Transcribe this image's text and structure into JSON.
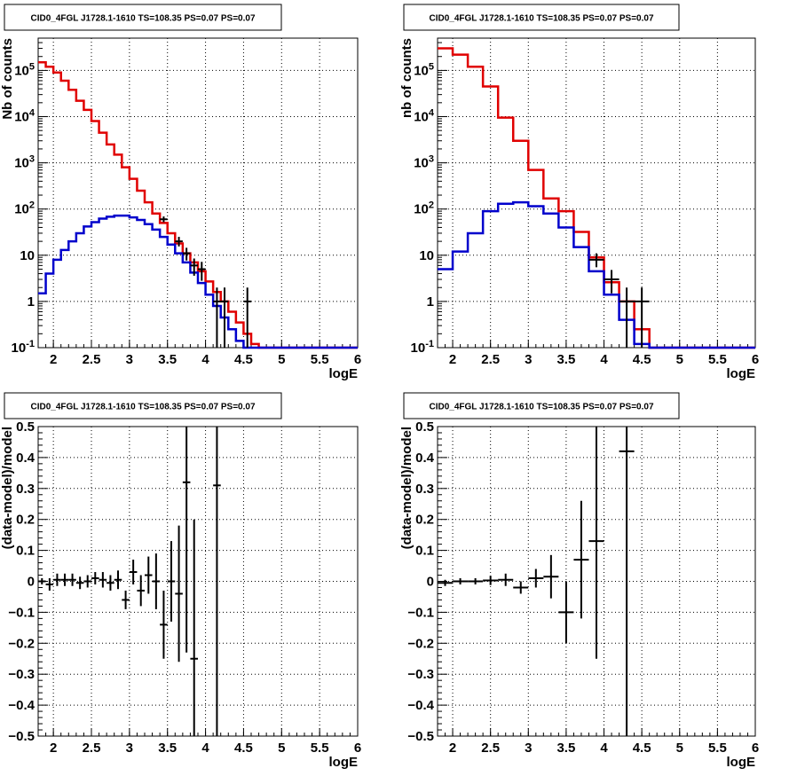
{
  "chart_data": [
    {
      "type": "histogram",
      "title": "CID0_4FGL J1728.1-1610 TS=108.35 PS=0.07 PS=0.07",
      "xlabel": "logE",
      "ylabel": "Nb of counts",
      "xlim": [
        1.8,
        6.0
      ],
      "ylim": [
        0.1,
        500000
      ],
      "yscale": "log",
      "grid": true,
      "x_ticks": [
        "2",
        "2.5",
        "3",
        "3.5",
        "4",
        "4.5",
        "5",
        "5.5",
        "6"
      ],
      "y_ticks": [
        "10^{-1}",
        "1",
        "10",
        "10^{2}",
        "10^{3}",
        "10^{4}",
        "10^{5}"
      ],
      "bin_width": 0.1,
      "series": [
        {
          "color": "#e00000",
          "bins_x": [
            1.8,
            1.9,
            2.0,
            2.1,
            2.2,
            2.3,
            2.4,
            2.5,
            2.6,
            2.7,
            2.8,
            2.9,
            3.0,
            3.1,
            3.2,
            3.3,
            3.4,
            3.5,
            3.6,
            3.7,
            3.8,
            3.9,
            4.0,
            4.1,
            4.2,
            4.3,
            4.4,
            4.5,
            4.6,
            4.7,
            4.8,
            4.9,
            5.0,
            5.1,
            5.2,
            5.3,
            5.4,
            5.5,
            5.6,
            5.7,
            5.8,
            5.9
          ],
          "values": [
            150000,
            120000,
            90000,
            60000,
            38000,
            22000,
            14000,
            8000,
            4500,
            2500,
            1500,
            800,
            450,
            250,
            140,
            80,
            50,
            30,
            18,
            11,
            7,
            4.5,
            2.7,
            1.6,
            1,
            0.6,
            0.35,
            0.2,
            0.12,
            0.1,
            0.1,
            0.1,
            0.1,
            0.1,
            0.1,
            0.1,
            0.1,
            0.1,
            0.1,
            0.1,
            0.1,
            0.1
          ]
        },
        {
          "color": "#0000cc",
          "bins_x": [
            1.8,
            1.9,
            2.0,
            2.1,
            2.2,
            2.3,
            2.4,
            2.5,
            2.6,
            2.7,
            2.8,
            2.9,
            3.0,
            3.1,
            3.2,
            3.3,
            3.4,
            3.5,
            3.6,
            3.7,
            3.8,
            3.9,
            4.0,
            4.1,
            4.2,
            4.3,
            4.4,
            4.5,
            4.6,
            4.7,
            4.8,
            4.9,
            5.0,
            5.1,
            5.2,
            5.3,
            5.4,
            5.5,
            5.6,
            5.7,
            5.8,
            5.9
          ],
          "values": [
            1.5,
            4,
            8,
            13,
            20,
            30,
            42,
            52,
            62,
            68,
            72,
            72,
            66,
            58,
            47,
            36,
            25,
            17,
            11,
            7,
            4.2,
            2.5,
            1.4,
            0.8,
            0.45,
            0.25,
            0.14,
            0.1,
            0.1,
            0.1,
            0.1,
            0.1,
            0.1,
            0.1,
            0.1,
            0.1,
            0.1,
            0.1,
            0.1,
            0.1,
            0.1,
            0.1
          ]
        }
      ],
      "data_points": [
        {
          "x": 3.45,
          "y": 60,
          "ylo": 52,
          "yhi": 69
        },
        {
          "x": 3.65,
          "y": 20,
          "ylo": 15.5,
          "yhi": 25
        },
        {
          "x": 3.75,
          "y": 11,
          "ylo": 7.7,
          "yhi": 14.5
        },
        {
          "x": 3.85,
          "y": 6,
          "ylo": 3.6,
          "yhi": 8.5
        },
        {
          "x": 3.95,
          "y": 5,
          "ylo": 2.8,
          "yhi": 7.2
        },
        {
          "x": 4.15,
          "y": 1,
          "ylo": 0.1,
          "yhi": 2
        },
        {
          "x": 4.25,
          "y": 1,
          "ylo": 0.1,
          "yhi": 2
        },
        {
          "x": 4.55,
          "y": 1,
          "ylo": 0.1,
          "yhi": 2
        }
      ]
    },
    {
      "type": "histogram",
      "title": "CID0_4FGL J1728.1-1610 TS=108.35 PS=0.07 PS=0.07",
      "xlabel": "logE",
      "ylabel": "nb of counts",
      "xlim": [
        1.8,
        6.0
      ],
      "ylim": [
        0.1,
        500000
      ],
      "yscale": "log",
      "grid": true,
      "x_ticks": [
        "2",
        "2.5",
        "3",
        "3.5",
        "4",
        "4.5",
        "5",
        "5.5",
        "6"
      ],
      "y_ticks": [
        "10^{-1}",
        "1",
        "10",
        "10^{2}",
        "10^{3}",
        "10^{4}",
        "10^{5}"
      ],
      "bin_width": 0.2,
      "series": [
        {
          "color": "#e00000",
          "bins_x": [
            1.8,
            2.0,
            2.2,
            2.4,
            2.6,
            2.8,
            3.0,
            3.2,
            3.4,
            3.6,
            3.8,
            4.0,
            4.2,
            4.4,
            4.6,
            4.8,
            5.0,
            5.2,
            5.4,
            5.6,
            5.8
          ],
          "values": [
            300000,
            220000,
            120000,
            45000,
            9500,
            3000,
            700,
            170,
            90,
            32,
            9,
            2.6,
            1,
            0.25,
            0.1,
            0.1,
            0.1,
            0.1,
            0.1,
            0.1,
            0.1
          ]
        },
        {
          "color": "#0000cc",
          "bins_x": [
            1.8,
            2.0,
            2.2,
            2.4,
            2.6,
            2.8,
            3.0,
            3.2,
            3.4,
            3.6,
            3.8,
            4.0,
            4.2,
            4.4,
            4.6,
            4.8,
            5.0,
            5.2,
            5.4,
            5.6,
            5.8
          ],
          "values": [
            5,
            12,
            30,
            90,
            130,
            140,
            115,
            80,
            40,
            15,
            4.5,
            1.4,
            0.4,
            0.12,
            0.1,
            0.1,
            0.1,
            0.1,
            0.1,
            0.1,
            0.1
          ]
        }
      ],
      "data_points": [
        {
          "x": 3.9,
          "y": 8,
          "ylo": 5.5,
          "yhi": 11
        },
        {
          "x": 4.1,
          "y": 3,
          "ylo": 1.5,
          "yhi": 4.8
        },
        {
          "x": 4.3,
          "y": 1,
          "ylo": 0.1,
          "yhi": 2
        },
        {
          "x": 4.5,
          "y": 1,
          "ylo": 0.1,
          "yhi": 2
        }
      ]
    },
    {
      "type": "scatter",
      "title": "CID0_4FGL J1728.1-1610 TS=108.35 PS=0.07 PS=0.07",
      "xlabel": "logE",
      "ylabel": "(data-model)/model",
      "xlim": [
        1.8,
        6.0
      ],
      "ylim": [
        -0.5,
        0.5
      ],
      "grid": true,
      "x_ticks": [
        "2",
        "2.5",
        "3",
        "3.5",
        "4",
        "4.5",
        "5",
        "5.5",
        "6"
      ],
      "y_ticks": [
        "−0.5",
        "−0.4",
        "−0.3",
        "−0.2",
        "−0.1",
        "0",
        "0.1",
        "0.2",
        "0.3",
        "0.4",
        "0.5"
      ],
      "x_half_width": 0.05,
      "points": [
        {
          "x": 1.85,
          "y": 0.0,
          "err": 0.01
        },
        {
          "x": 1.95,
          "y": -0.01,
          "err": 0.02
        },
        {
          "x": 2.05,
          "y": 0.005,
          "err": 0.02
        },
        {
          "x": 2.15,
          "y": 0.005,
          "err": 0.02
        },
        {
          "x": 2.25,
          "y": 0.005,
          "err": 0.02
        },
        {
          "x": 2.35,
          "y": -0.005,
          "err": 0.02
        },
        {
          "x": 2.45,
          "y": 0.0,
          "err": 0.02
        },
        {
          "x": 2.55,
          "y": 0.01,
          "err": 0.02
        },
        {
          "x": 2.65,
          "y": 0.005,
          "err": 0.025
        },
        {
          "x": 2.75,
          "y": -0.005,
          "err": 0.025
        },
        {
          "x": 2.85,
          "y": 0.005,
          "err": 0.03
        },
        {
          "x": 2.95,
          "y": -0.06,
          "err": 0.03
        },
        {
          "x": 3.05,
          "y": 0.03,
          "err": 0.04
        },
        {
          "x": 3.15,
          "y": -0.03,
          "err": 0.05
        },
        {
          "x": 3.25,
          "y": 0.02,
          "err": 0.06
        },
        {
          "x": 3.35,
          "y": 0.0,
          "err": 0.09
        },
        {
          "x": 3.45,
          "y": -0.14,
          "err": 0.11
        },
        {
          "x": 3.55,
          "y": 0.0,
          "err": 0.13
        },
        {
          "x": 3.65,
          "y": -0.04,
          "err": 0.22
        },
        {
          "x": 3.75,
          "y": 0.32,
          "err": 0.55
        },
        {
          "x": 3.85,
          "y": -0.25,
          "err": 0.45
        },
        {
          "x": 4.15,
          "y": 0.31,
          "err": 1.2
        }
      ]
    },
    {
      "type": "scatter",
      "title": "CID0_4FGL J1728.1-1610 TS=108.35 PS=0.07 PS=0.07",
      "xlabel": "logE",
      "ylabel": "(data-model)/model",
      "xlim": [
        1.8,
        6.0
      ],
      "ylim": [
        -0.5,
        0.5
      ],
      "grid": true,
      "x_ticks": [
        "2",
        "2.5",
        "3",
        "3.5",
        "4",
        "4.5",
        "5",
        "5.5",
        "6"
      ],
      "y_ticks": [
        "−0.5",
        "−0.4",
        "−0.3",
        "−0.2",
        "−0.1",
        "0",
        "0.1",
        "0.2",
        "0.3",
        "0.4",
        "0.5"
      ],
      "x_half_width": 0.1,
      "points": [
        {
          "x": 1.9,
          "y": -0.005,
          "err": 0.01
        },
        {
          "x": 2.1,
          "y": 0.0,
          "err": 0.01
        },
        {
          "x": 2.3,
          "y": 0.0,
          "err": 0.01
        },
        {
          "x": 2.5,
          "y": 0.003,
          "err": 0.015
        },
        {
          "x": 2.7,
          "y": 0.005,
          "err": 0.02
        },
        {
          "x": 2.9,
          "y": -0.02,
          "err": 0.02
        },
        {
          "x": 3.1,
          "y": 0.01,
          "err": 0.03
        },
        {
          "x": 3.3,
          "y": 0.015,
          "err": 0.07
        },
        {
          "x": 3.5,
          "y": -0.1,
          "err": 0.1
        },
        {
          "x": 3.7,
          "y": 0.07,
          "err": 0.19
        },
        {
          "x": 3.9,
          "y": 0.13,
          "err": 0.38
        },
        {
          "x": 4.3,
          "y": 0.42,
          "err": 1.2
        }
      ]
    }
  ]
}
